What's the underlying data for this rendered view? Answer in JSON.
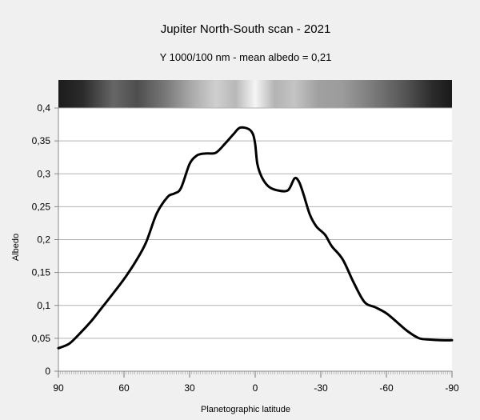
{
  "chart_data": {
    "type": "line",
    "title": "Jupiter North-South scan - 2021",
    "subtitle": "Y 1000/100 nm - mean albedo = 0,21",
    "xlabel": "Planetographic latitude",
    "ylabel": "Albedo",
    "xlim": [
      90,
      -90
    ],
    "ylim": [
      0,
      0.4
    ],
    "x_ticks": [
      90,
      60,
      30,
      0,
      -30,
      -60,
      -90
    ],
    "x_tick_labels": [
      "90",
      "60",
      "30",
      "0",
      "-30",
      "-60",
      "-90"
    ],
    "y_ticks": [
      0,
      0.05,
      0.1,
      0.15,
      0.2,
      0.25,
      0.3,
      0.35,
      0.4
    ],
    "y_tick_labels": [
      "0",
      "0,05",
      "0,1",
      "0,15",
      "0,2",
      "0,25",
      "0,3",
      "0,35",
      "0,4"
    ],
    "grid": true,
    "series": [
      {
        "color": "#000000",
        "x": [
          90,
          85,
          80,
          75,
          70,
          65,
          60,
          55,
          50,
          45,
          40,
          37,
          34,
          30,
          27,
          25,
          22,
          18,
          14,
          10,
          7,
          3,
          1,
          0,
          -1,
          -3,
          -6,
          -10,
          -15,
          -18,
          -20,
          -22,
          -25,
          -28,
          -32,
          -35,
          -40,
          -45,
          -50,
          -55,
          -60,
          -65,
          -70,
          -75,
          -80,
          -85,
          -90
        ],
        "y": [
          0.035,
          0.042,
          0.058,
          0.076,
          0.097,
          0.118,
          0.14,
          0.165,
          0.195,
          0.24,
          0.265,
          0.27,
          0.278,
          0.315,
          0.327,
          0.33,
          0.331,
          0.332,
          0.345,
          0.36,
          0.37,
          0.368,
          0.36,
          0.345,
          0.315,
          0.295,
          0.281,
          0.275,
          0.275,
          0.293,
          0.288,
          0.27,
          0.238,
          0.22,
          0.207,
          0.19,
          0.17,
          0.135,
          0.105,
          0.097,
          0.088,
          0.074,
          0.06,
          0.05,
          0.048,
          0.047,
          0.047
        ]
      }
    ]
  }
}
